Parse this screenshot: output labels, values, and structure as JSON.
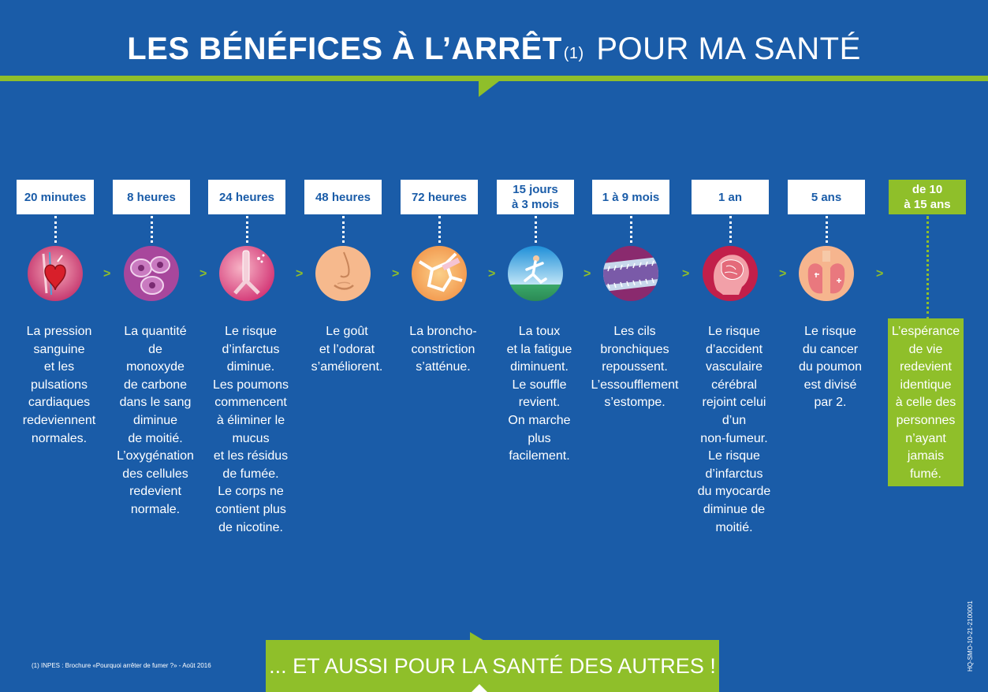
{
  "title": {
    "bold": "LES BÉNÉFICES À L’ARRÊT",
    "sup": "(1)",
    "light": "POUR MA SANTÉ"
  },
  "steps": [
    {
      "time": "20 minutes",
      "icon": "heart-icon",
      "text": "La pression\nsanguine\net les\npulsations\ncardiaques\nredeviennent\nnormales."
    },
    {
      "time": "8 heures",
      "icon": "cells-icon",
      "text": "La quantité\nde\nmonoxyde\nde carbone\ndans le sang\ndiminue\nde moitié.\nL’oxygénation\ndes cellules\nredevient\nnormale."
    },
    {
      "time": "24 heures",
      "icon": "lungs-mucus-icon",
      "text": "Le risque\nd’infarctus\ndiminue.\nLes poumons\ncommencent\nà éliminer le\nmucus\net les résidus\nde fumée.\nLe corps ne\ncontient plus\nde nicotine."
    },
    {
      "time": "48 heures",
      "icon": "nose-mouth-icon",
      "text": "Le goût\net l’odorat\ns’améliorent."
    },
    {
      "time": "72 heures",
      "icon": "bronchi-icon",
      "text": "La broncho-\nconstriction\ns’atténue."
    },
    {
      "time": "15 jours\nà 3 mois",
      "icon": "runner-icon",
      "text": "La toux\net la fatigue\ndiminuent.\nLe souffle\nrevient.\nOn marche\nplus\nfacilement."
    },
    {
      "time": "1 à 9 mois",
      "icon": "cilia-icon",
      "text": "Les cils\nbronchiques\nrepoussent.\nL’essoufflement\ns’estompe."
    },
    {
      "time": "1 an",
      "icon": "brain-icon",
      "text": "Le risque\nd’accident\nvasculaire\ncérébral\nrejoint celui\nd’un\nnon-fumeur.\nLe risque\nd’infarctus\ndu myocarde\ndiminue de\nmoitié."
    },
    {
      "time": "5 ans",
      "icon": "torso-lungs-icon",
      "text": "Le risque\ndu cancer\ndu poumon\nest divisé\npar 2."
    },
    {
      "time": "de 10\nà 15 ans",
      "icon": "",
      "text": "L’espérance\nde vie\nredevient\nidentique\nà celle des\npersonnes\nn’ayant\njamais\nfumé."
    }
  ],
  "chevron": ">",
  "footnote": "(1) INPES : Brochure «Pourquoi arrêter de fumer ?» - Août 2016",
  "side_code": "HQ-SMO-10-21-2100001",
  "bottom_banner": "... ET AUSSI POUR LA SANTÉ DES AUTRES !",
  "colors": {
    "background": "#1a5ca8",
    "accent_green": "#8fbf2a",
    "text_white": "#ffffff"
  }
}
